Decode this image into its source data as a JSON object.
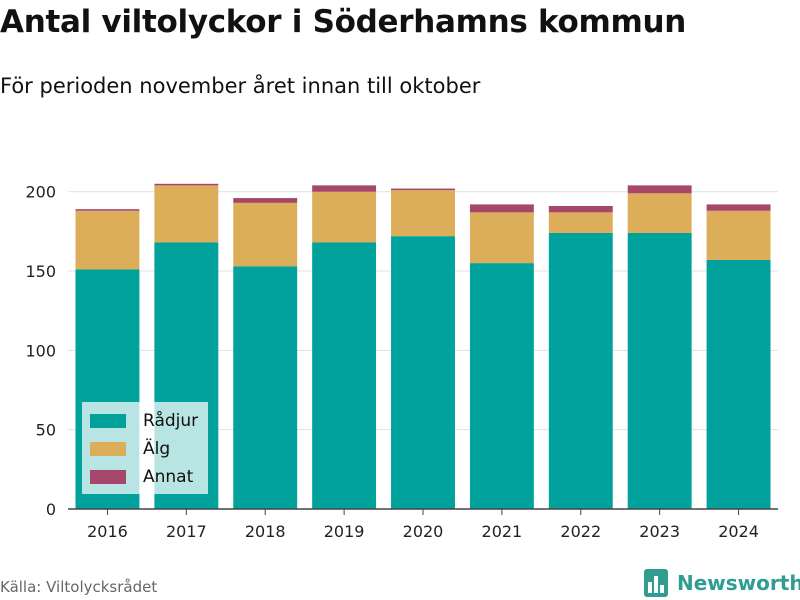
{
  "title": "Antal viltolyckor i Söderhamns kommun",
  "subtitle": "För perioden november året innan till oktober",
  "source": "Källa: Viltolycksrådet",
  "brand": {
    "name": "Newsworthy",
    "icon": "bar-chart-icon",
    "color": "#2f9d8f"
  },
  "colors": {
    "grid": "#e1e1e1",
    "axis": "#444444"
  },
  "chart_data": {
    "type": "bar",
    "stacked": true,
    "categories": [
      "2016",
      "2017",
      "2018",
      "2019",
      "2020",
      "2021",
      "2022",
      "2023",
      "2024"
    ],
    "series": [
      {
        "name": "Rådjur",
        "color": "#00a29b",
        "values": [
          151,
          168,
          153,
          168,
          172,
          155,
          174,
          174,
          157
        ]
      },
      {
        "name": "Älg",
        "color": "#dcae59",
        "values": [
          37,
          36,
          40,
          32,
          29,
          32,
          13,
          25,
          31
        ]
      },
      {
        "name": "Annat",
        "color": "#a5466a",
        "values": [
          1,
          1,
          3,
          4,
          1,
          5,
          4,
          5,
          4
        ]
      }
    ],
    "title": "Antal viltolyckor i Söderhamns kommun",
    "xlabel": "",
    "ylabel": "",
    "ylim": [
      0,
      220
    ],
    "yticks": [
      0,
      50,
      100,
      150,
      200
    ],
    "grid": true,
    "legend": "bottom-left"
  }
}
